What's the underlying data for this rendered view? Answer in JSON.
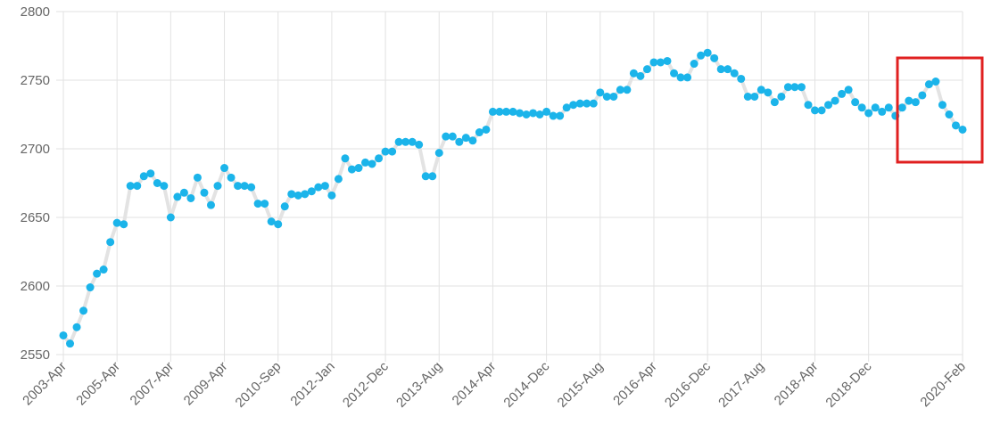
{
  "chart_data": {
    "type": "line",
    "categories": [
      "2003-Apr",
      null,
      null,
      null,
      null,
      null,
      null,
      null,
      "2005-Apr",
      null,
      null,
      null,
      null,
      null,
      null,
      null,
      "2007-Apr",
      null,
      null,
      null,
      null,
      null,
      null,
      null,
      "2009-Apr",
      null,
      null,
      null,
      null,
      null,
      null,
      null,
      "2010-Sep",
      null,
      null,
      null,
      null,
      null,
      null,
      null,
      "2012-Jan",
      null,
      null,
      null,
      null,
      null,
      null,
      null,
      "2012-Dec",
      null,
      null,
      null,
      null,
      null,
      null,
      null,
      "2013-Aug",
      null,
      null,
      null,
      null,
      null,
      null,
      null,
      "2014-Apr",
      null,
      null,
      null,
      null,
      null,
      null,
      null,
      "2014-Dec",
      null,
      null,
      null,
      null,
      null,
      null,
      null,
      "2015-Aug",
      null,
      null,
      null,
      null,
      null,
      null,
      null,
      "2016-Apr",
      null,
      null,
      null,
      null,
      null,
      null,
      null,
      "2016-Dec",
      null,
      null,
      null,
      null,
      null,
      null,
      null,
      "2017-Aug",
      null,
      null,
      null,
      null,
      null,
      null,
      null,
      "2018-Apr",
      null,
      null,
      null,
      null,
      null,
      null,
      null,
      "2018-Dec",
      null,
      null,
      null,
      null,
      null,
      null,
      null,
      null,
      null,
      null,
      null,
      null,
      null,
      "2020-Feb"
    ],
    "values": [
      2564,
      2558,
      2570,
      2582,
      2599,
      2609,
      2612,
      2632,
      2646,
      2645,
      2673,
      2673,
      2680,
      2682,
      2675,
      2673,
      2650,
      2665,
      2668,
      2664,
      2679,
      2668,
      2659,
      2673,
      2686,
      2679,
      2673,
      2673,
      2672,
      2660,
      2660,
      2647,
      2645,
      2658,
      2667,
      2666,
      2667,
      2669,
      2672,
      2673,
      2666,
      2678,
      2693,
      2685,
      2686,
      2690,
      2689,
      2693,
      2698,
      2698,
      2705,
      2705,
      2705,
      2703,
      2680,
      2680,
      2697,
      2709,
      2709,
      2705,
      2708,
      2706,
      2712,
      2714,
      2727,
      2727,
      2727,
      2727,
      2726,
      2725,
      2726,
      2725,
      2727,
      2724,
      2724,
      2730,
      2732,
      2733,
      2733,
      2733,
      2741,
      2738,
      2738,
      2743,
      2743,
      2755,
      2753,
      2758,
      2763,
      2763,
      2764,
      2755,
      2752,
      2752,
      2762,
      2768,
      2770,
      2766,
      2758,
      2758,
      2755,
      2751,
      2738,
      2738,
      2743,
      2741,
      2734,
      2738,
      2745,
      2745,
      2745,
      2732,
      2728,
      2728,
      2732,
      2735,
      2740,
      2743,
      2734,
      2730,
      2726,
      2730,
      2727,
      2730,
      2724,
      2730,
      2735,
      2734,
      2739,
      2747,
      2749,
      2732,
      2725,
      2717,
      2714
    ],
    "line_color": "#e3e3e3",
    "point_color": "#1bb4ea",
    "ylim": [
      2550,
      2800
    ],
    "yticks": [
      2550,
      2600,
      2650,
      2700,
      2750,
      2800
    ],
    "grid": true
  }
}
